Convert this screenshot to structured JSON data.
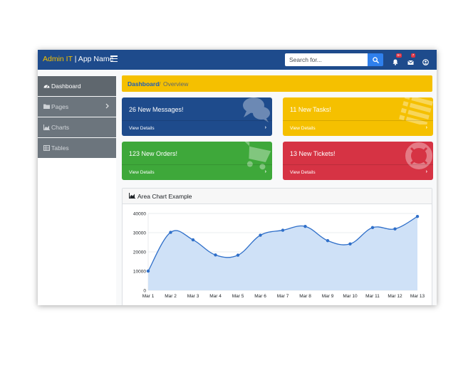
{
  "header": {
    "brand_highlight": "Admin IT",
    "brand_rest": " | App Name",
    "search_placeholder": "Search for...",
    "badges": {
      "alerts": "9+",
      "messages": "7"
    }
  },
  "sidebar": {
    "items": [
      {
        "label": "Dashboard",
        "icon": "tachometer-icon",
        "active": true
      },
      {
        "label": "Pages",
        "icon": "folder-icon",
        "has_chevron": true
      },
      {
        "label": "Charts",
        "icon": "area-chart-icon"
      },
      {
        "label": "Tables",
        "icon": "table-icon"
      }
    ]
  },
  "breadcrumb": {
    "home": "Dashboard",
    "separator": "/",
    "current": "Overview"
  },
  "cards": [
    {
      "title": "26 New Messages!",
      "footer": "View Details",
      "arrow": "›",
      "color": "#1e4b8c",
      "icon": "comments-icon"
    },
    {
      "title": "11 New Tasks!",
      "footer": "View Details",
      "arrow": "›",
      "color": "#f5c000",
      "icon": "list-icon"
    },
    {
      "title": "123 New Orders!",
      "footer": "View Details",
      "arrow": "›",
      "color": "#3ea83a",
      "icon": "shopping-cart-icon"
    },
    {
      "title": "13 New Tickets!",
      "footer": "View Details",
      "arrow": "›",
      "color": "#d63344",
      "icon": "life-ring-icon"
    }
  ],
  "chart_card": {
    "title": "Area Chart Example"
  },
  "chart_data": {
    "type": "area",
    "title": "Area Chart Example",
    "categories": [
      "Mar 1",
      "Mar 2",
      "Mar 3",
      "Mar 4",
      "Mar 5",
      "Mar 6",
      "Mar 7",
      "Mar 8",
      "Mar 9",
      "Mar 10",
      "Mar 11",
      "Mar 12",
      "Mar 13"
    ],
    "series": [
      {
        "values": [
          10000,
          30162,
          26263,
          18394,
          18287,
          28682,
          31274,
          33259,
          25849,
          24159,
          32651,
          31984,
          38451
        ]
      }
    ],
    "ylim": [
      0,
      40000
    ],
    "yticks": [
      0,
      10000,
      20000,
      30000,
      40000
    ],
    "grid": true,
    "colors": {
      "line": "#2f6fc9",
      "fill": "#cfe1f7"
    }
  }
}
